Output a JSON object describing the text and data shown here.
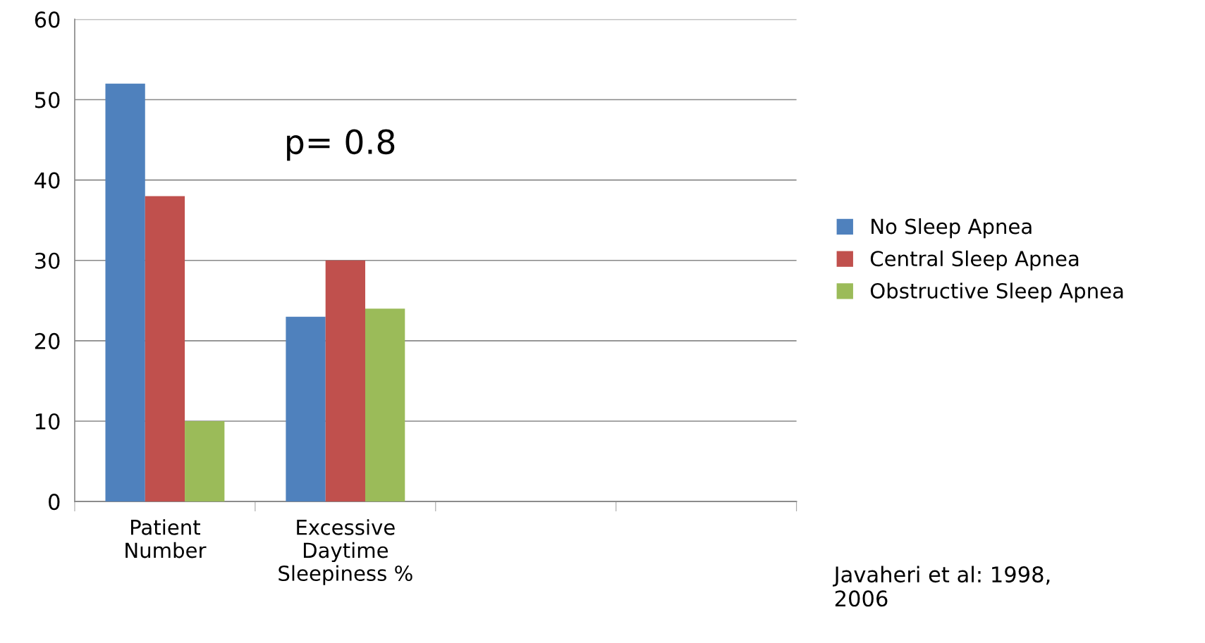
{
  "chart_data": {
    "type": "bar",
    "categories": [
      "Patient\nNumber",
      "Excessive\nDaytime\nSleepiness %",
      null,
      null
    ],
    "series": [
      {
        "name": "No Sleep Apnea",
        "color": "#4f81bd",
        "values": [
          52,
          23,
          null,
          null
        ]
      },
      {
        "name": "Central Sleep Apnea",
        "color": "#c0504d",
        "values": [
          38,
          30,
          null,
          null
        ]
      },
      {
        "name": "Obstructive Sleep Apnea",
        "color": "#9bbb59",
        "values": [
          10,
          24,
          null,
          null
        ]
      }
    ],
    "ylim": [
      0,
      60
    ],
    "yticks": [
      0,
      10,
      20,
      30,
      40,
      50,
      60
    ],
    "grid": "y",
    "legend": "right",
    "annotations": [
      "p= 0.8",
      "Javaheri et al: 1998,\n2006"
    ]
  }
}
